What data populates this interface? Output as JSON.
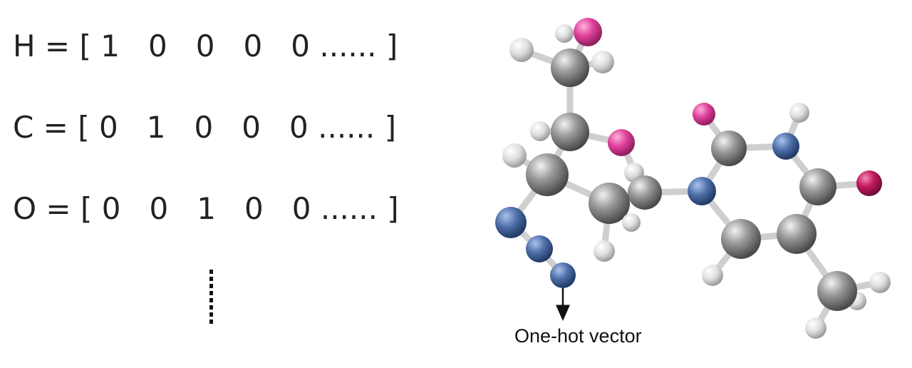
{
  "encodings": [
    {
      "atom": "H",
      "vector": "H = [ 1   0   0   0   0 ...... ]"
    },
    {
      "atom": "C",
      "vector": "C = [ 0   1   0   0   0 ...... ]"
    },
    {
      "atom": "O",
      "vector": "O = [ 0   0   1   0   0 ...... ]"
    }
  ],
  "caption": "One-hot vector",
  "atom_colors": {
    "carbon": "#8c8c8c",
    "hydrogen": "#e8e8e8",
    "oxygen": "#e0409a",
    "nitrogen": "#4e6fa8",
    "carbonyl_oxygen": "#c2185b"
  }
}
